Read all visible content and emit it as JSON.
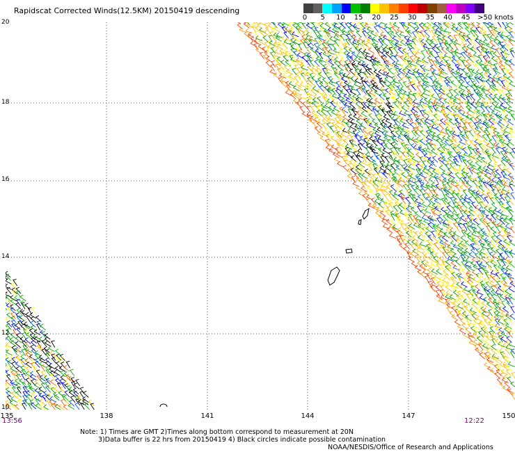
{
  "title": "Rapidscat Corrected Winds(12.5KM) 20150419 descending",
  "colorbar": {
    "unit_label": ">50 knots",
    "ticks": [
      "0",
      "5",
      "10",
      "15",
      "20",
      "25",
      "30",
      "35",
      "40",
      "45"
    ],
    "colors": [
      "#404040",
      "#606060",
      "#00ffff",
      "#00a0ff",
      "#0000ff",
      "#00c000",
      "#008000",
      "#ffff00",
      "#ffc000",
      "#ff8000",
      "#ff4000",
      "#ff0000",
      "#c00000",
      "#804000",
      "#a06040",
      "#ff00ff",
      "#c000c0",
      "#8000ff",
      "#400080"
    ]
  },
  "map": {
    "lat_labels": [
      "20",
      "18",
      "16",
      "14",
      "12",
      "10"
    ],
    "lon_labels": [
      "135",
      "138",
      "141",
      "144",
      "147",
      "150"
    ],
    "time_left": "13:56",
    "time_right": "12:22"
  },
  "notes": {
    "line1": "Note: 1) Times are GMT 2)Times along bottom correspond to measurement at 20N",
    "line2": "3)Data buffer is 22 hrs from 20150419 4) Black circles indicate possible contamination",
    "credit": "NOAA/NESDIS/Office of Research and Applications"
  }
}
